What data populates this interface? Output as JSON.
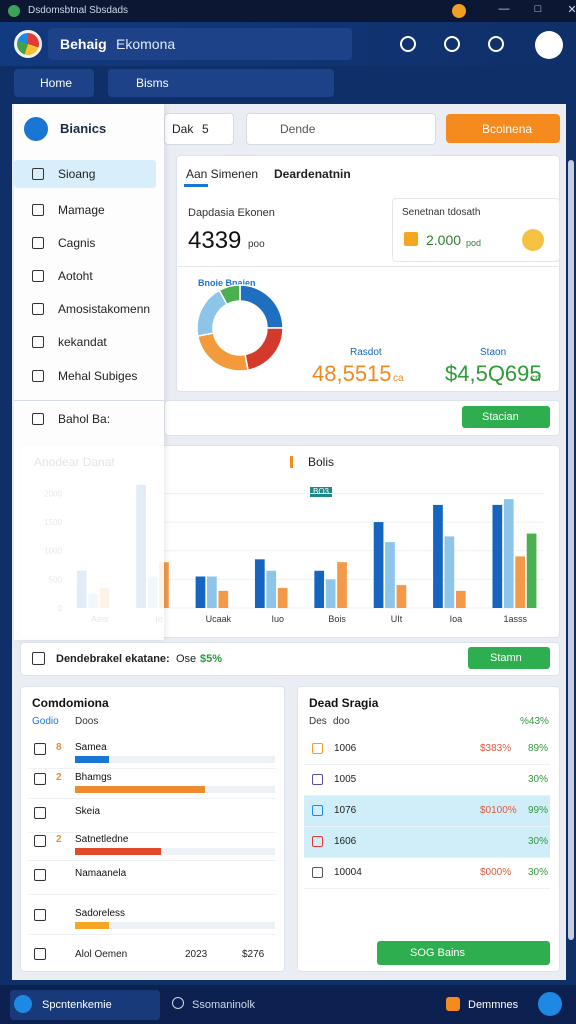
{
  "window": {
    "title": "Dsdomsbtnal Sbsdads"
  },
  "header": {
    "brand": "Behaig",
    "workspace": "Ekomona"
  },
  "nav": {
    "home": "Home",
    "search": "Bisms"
  },
  "sidebar": {
    "title": "Bianics",
    "items": [
      "Sioang",
      "Mamage",
      "Cagnis",
      "Aotoht",
      "Amosistakomenn",
      "kekandat",
      "Mehal Subiges"
    ],
    "footer": "Bahol Ba:"
  },
  "toolbar": {
    "period": "Dak",
    "count": "5",
    "search": "Dende",
    "action": "Bcoinena"
  },
  "summary": {
    "tabs": [
      "Aan Simenen",
      "Deardenatnin"
    ],
    "stat_label": "Dapdasia Ekonen",
    "stat_value": "4339",
    "stat_unit": "poo",
    "side_label": "Senetnan tdosath",
    "side_value": "2.000",
    "side_unit": "pod",
    "section": "Bnoie Bnaien",
    "metric1_label": "Rasdot",
    "metric1_value": "48,5515",
    "metric1_unit": "ca",
    "metric2_label": "Staon",
    "metric2_value": "$4,5Q695",
    "metric2_unit": "cn"
  },
  "filter_row": {
    "action": "Stacian"
  },
  "chart_panel": {
    "title": "Anodear Danat",
    "legend_label": "Bolis",
    "badge": "BO3"
  },
  "status_row": {
    "label": "Dendebrakel ekatane:",
    "note": "Ose",
    "value": "$5%",
    "action": "Stamn"
  },
  "left_card": {
    "title": "Comdomiona",
    "subtitles": [
      "Godio",
      "Doos"
    ],
    "items": [
      {
        "badge": "8",
        "label": "Samea",
        "value": 17,
        "color": "#1976d2"
      },
      {
        "badge": "2",
        "label": "Bhamgs",
        "value": 65,
        "color": "#f08a30"
      },
      {
        "label": "Skeia"
      },
      {
        "badge": "2",
        "label": "Satnetledne",
        "value": 43,
        "color": "#e04a2a"
      },
      {
        "label": "Namaanela"
      },
      {
        "label": "Sadoreless",
        "value": 17,
        "color": "#f5a623"
      }
    ],
    "footer": [
      "Alol Oemen",
      "2023",
      "$276"
    ]
  },
  "right_card": {
    "title": "Dead Sragia",
    "header": [
      "Des",
      "doo",
      "%43%"
    ],
    "rows": [
      {
        "id": "1006",
        "change": "$383%",
        "pct": "89%",
        "color": "#f0a020"
      },
      {
        "id": "1005",
        "pct": "30%",
        "color": "#5a4ca0"
      },
      {
        "id": "1076",
        "change": "$0100%",
        "pct": "99%",
        "color": "#1e88e5",
        "highlight": true
      },
      {
        "id": "1606",
        "pct": "30%",
        "color": "#e53935",
        "highlight": true
      },
      {
        "id": "10004",
        "change": "$000%",
        "pct": "30%",
        "color": "#555555"
      }
    ],
    "action": "SOG Bains"
  },
  "footer": {
    "left": "Spcntenkemie",
    "center": "Ssomaninolk",
    "right": "Demmnes"
  },
  "chart_data": [
    {
      "type": "bar",
      "categories": [
        "Aeis",
        "Io",
        "Ucaak",
        "Iuo",
        "Bois",
        "UIt",
        "Ioa",
        "1asss"
      ],
      "series": [
        {
          "color": "#1565c0",
          "values": [
            650,
            2150,
            550,
            850,
            650,
            1500,
            1800,
            1800
          ]
        },
        {
          "color": "#8cc4ea",
          "values": [
            250,
            550,
            550,
            650,
            500,
            1150,
            1250,
            1900
          ]
        },
        {
          "color": "#f39a4a",
          "values": [
            350,
            800,
            300,
            350,
            800,
            400,
            300,
            900
          ]
        },
        {
          "color": "#4caf50",
          "values": [
            null,
            null,
            null,
            null,
            null,
            null,
            null,
            1300
          ]
        }
      ],
      "ylim": [
        0,
        2200
      ],
      "yticks": [
        0,
        500,
        1000,
        1500,
        2000
      ],
      "grid": true
    },
    {
      "type": "pie",
      "values": [
        25,
        22,
        25,
        20,
        8
      ],
      "colors": [
        "#1e6fc0",
        "#d33a2c",
        "#f39a3a",
        "#8cc4ea",
        "#4caf50"
      ]
    }
  ]
}
